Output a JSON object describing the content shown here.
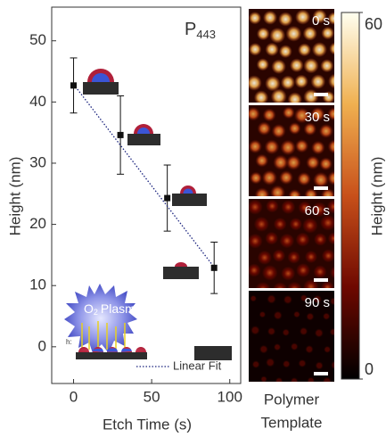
{
  "chart_data": {
    "type": "errorbar",
    "annotation": {
      "main": "P",
      "sub": "443"
    },
    "xlabel": "Etch Time (s)",
    "ylabel": "Height (nm)",
    "x": [
      0,
      30,
      60,
      90
    ],
    "series": [
      {
        "color": "#111111",
        "values": [
          42.7,
          34.6,
          24.3,
          12.9
        ],
        "errors": [
          4.5,
          6.4,
          5.4,
          4.2
        ]
      },
      {
        "name": "Linear Fit",
        "color": "#1a237e",
        "x": [
          0,
          90
        ],
        "values": [
          42.9,
          13.0
        ]
      }
    ],
    "xlim": [
      -14,
      107
    ],
    "xticks": [
      0,
      50,
      100
    ],
    "ylim": [
      -6,
      55.5
    ],
    "yticks": [
      0,
      10,
      20,
      30,
      40,
      50
    ],
    "inset": {
      "gas": "O",
      "gas_sub": "2",
      "word": "Plasma",
      "h": "h:"
    },
    "panels": [
      "0 s",
      "30 s",
      "60 s",
      "90 s"
    ],
    "panel_caption": [
      "Polymer",
      "Template"
    ],
    "colorbar": {
      "label": "Height (nm)",
      "lim": [
        0,
        60
      ],
      "ticks": [
        0,
        60
      ],
      "colors": [
        "#000000",
        "#6e0800",
        "#c8501a",
        "#f0b050",
        "#fffff0"
      ]
    }
  }
}
